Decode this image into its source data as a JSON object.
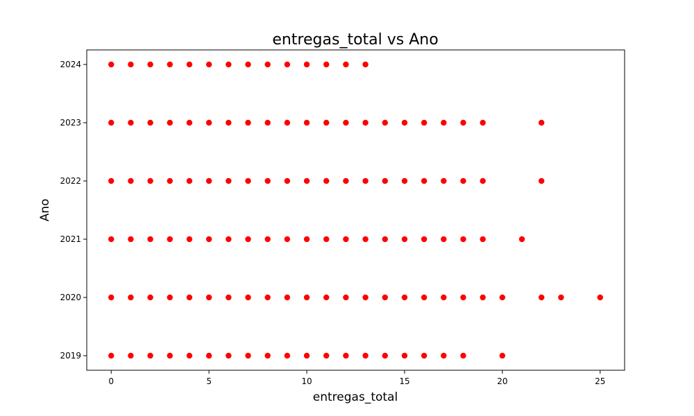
{
  "chart_data": {
    "type": "scatter",
    "title": "entregas_total vs Ano",
    "xlabel": "entregas_total",
    "ylabel": "Ano",
    "xlim": [
      -1.25,
      26.25
    ],
    "ylim": [
      2018.75,
      2024.25
    ],
    "xticks": [
      0,
      5,
      10,
      15,
      20,
      25
    ],
    "yticks": [
      2019,
      2020,
      2021,
      2022,
      2023,
      2024
    ],
    "grid": false,
    "marker_color": "#ff0000",
    "points": [
      {
        "year": 2024,
        "x": [
          0,
          1,
          2,
          3,
          4,
          5,
          6,
          7,
          8,
          9,
          10,
          11,
          12,
          13
        ]
      },
      {
        "year": 2023,
        "x": [
          0,
          1,
          2,
          3,
          4,
          5,
          6,
          7,
          8,
          9,
          10,
          11,
          12,
          13,
          14,
          15,
          16,
          17,
          18,
          19,
          22
        ]
      },
      {
        "year": 2022,
        "x": [
          0,
          1,
          2,
          3,
          4,
          5,
          6,
          7,
          8,
          9,
          10,
          11,
          12,
          13,
          14,
          15,
          16,
          17,
          18,
          19,
          22
        ]
      },
      {
        "year": 2021,
        "x": [
          0,
          1,
          2,
          3,
          4,
          5,
          6,
          7,
          8,
          9,
          10,
          11,
          12,
          13,
          14,
          15,
          16,
          17,
          18,
          19,
          21
        ]
      },
      {
        "year": 2020,
        "x": [
          0,
          1,
          2,
          3,
          4,
          5,
          6,
          7,
          8,
          9,
          10,
          11,
          12,
          13,
          14,
          15,
          16,
          17,
          18,
          19,
          20,
          22,
          23,
          25
        ]
      },
      {
        "year": 2019,
        "x": [
          0,
          1,
          2,
          3,
          4,
          5,
          6,
          7,
          8,
          9,
          10,
          11,
          12,
          13,
          14,
          15,
          16,
          17,
          18,
          20
        ]
      }
    ]
  }
}
